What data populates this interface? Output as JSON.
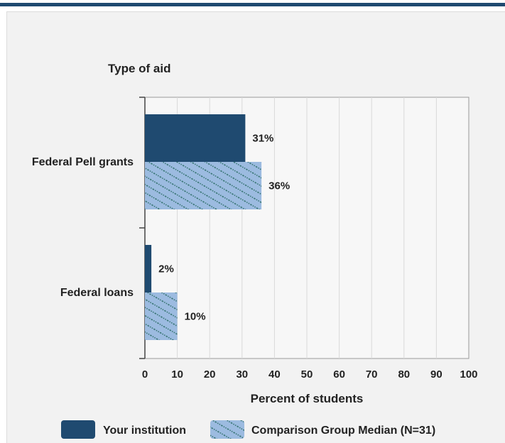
{
  "chart_data": {
    "type": "bar",
    "orientation": "horizontal",
    "title": "Type of aid",
    "xlabel": "Percent of students",
    "categories": [
      "Federal Pell grants",
      "Federal loans"
    ],
    "series": [
      {
        "name": "Your institution",
        "values": [
          31,
          2
        ],
        "labels": [
          "31%",
          "2%"
        ],
        "color": "#1f4a70",
        "pattern": "solid"
      },
      {
        "name": "Comparison Group Median (N=31)",
        "values": [
          36,
          10
        ],
        "labels": [
          "36%",
          "10%"
        ],
        "color": "#9cbbe0",
        "pattern": "hatched"
      }
    ],
    "xlim": [
      0,
      100
    ],
    "xticks": [
      "0",
      "10",
      "20",
      "30",
      "40",
      "50",
      "60",
      "70",
      "80",
      "90",
      "100"
    ],
    "grid": true,
    "legend": "bottom"
  }
}
